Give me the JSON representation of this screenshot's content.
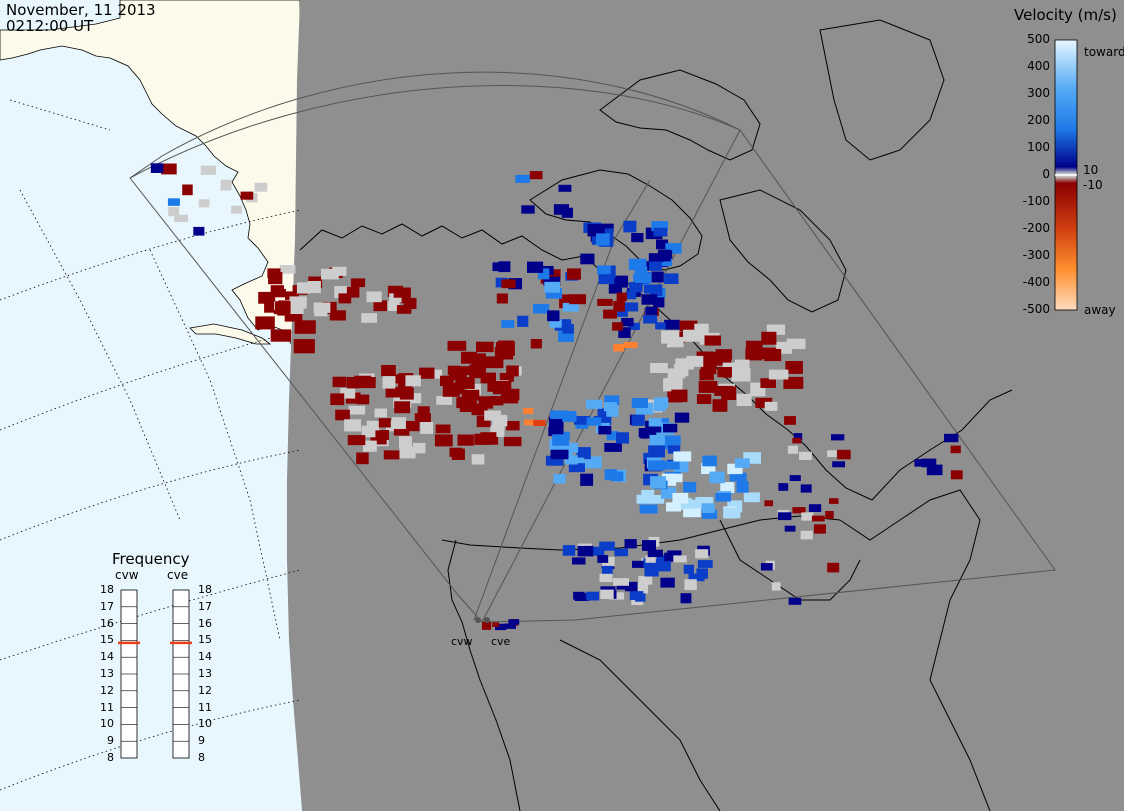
{
  "header": {
    "date": "November, 11 2013",
    "time": "0212:00 UT"
  },
  "velocity_legend": {
    "title": "Velocity (m/s)",
    "ticks": [
      "500",
      "400",
      "300",
      "200",
      "100",
      "10",
      "0",
      "-10",
      "-100",
      "-200",
      "-300",
      "-400",
      "-500"
    ],
    "toward_label": "toward",
    "away_label": "away",
    "colors": {
      "toward_max": "#e6f6ff",
      "toward_mid": "#1e90ff",
      "toward_min": "#00008b",
      "zero": "#c8c8c8",
      "away_min": "#8b0000",
      "away_mid": "#ff8c00",
      "away_max": "#ffdcc0"
    }
  },
  "frequency_panel": {
    "title": "Frequency",
    "radars": [
      {
        "name": "cvw",
        "frequency_mhz": 15
      },
      {
        "name": "cve",
        "frequency_mhz": 15
      }
    ],
    "scale": [
      "18",
      "17",
      "16",
      "15",
      "14",
      "13",
      "12",
      "11",
      "10",
      "9",
      "8"
    ],
    "marker_color": "#e8401a"
  },
  "map": {
    "ocean_color": "#e8f6fd",
    "land_color": "#fcfaea",
    "night_color": "#8f8f8f",
    "radar_sites": [
      "cvw",
      "cve"
    ],
    "scatter_colors": [
      "#8b0000",
      "#cdcdcd",
      "#00008b",
      "#0a3ec8",
      "#1e7ae8",
      "#55aaf5",
      "#a8dcfa",
      "#d4efff",
      "#e04010",
      "#ff8030"
    ]
  }
}
